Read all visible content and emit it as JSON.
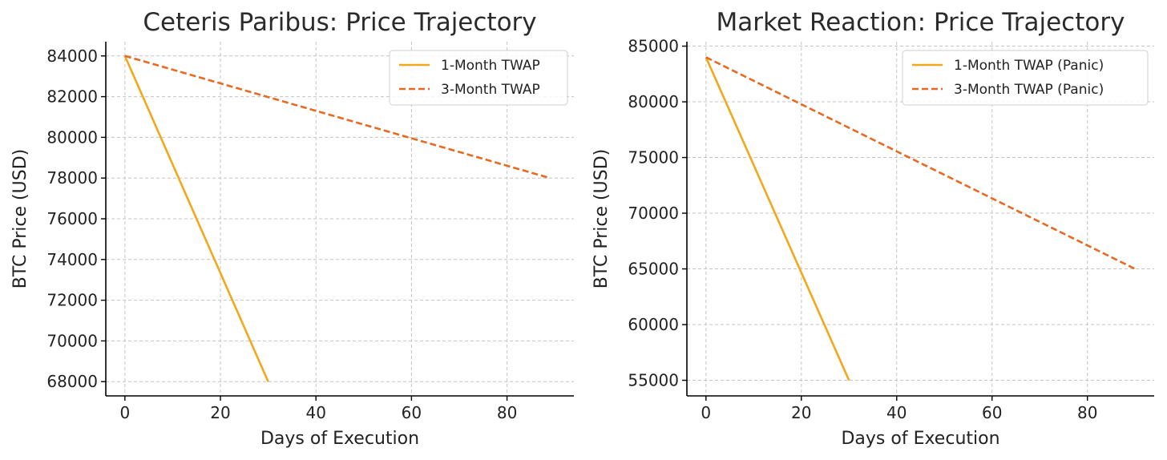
{
  "chart_data": [
    {
      "type": "line",
      "title": "Ceteris Paribus: Price Trajectory",
      "xlabel": "Days of Execution",
      "ylabel": "BTC Price (USD)",
      "xlim": [
        -4,
        94
      ],
      "ylim": [
        67300,
        84700
      ],
      "xticks": [
        0,
        20,
        40,
        60,
        80
      ],
      "yticks": [
        68000,
        70000,
        72000,
        74000,
        76000,
        78000,
        80000,
        82000,
        84000
      ],
      "grid": true,
      "legend_position": "top-right",
      "series": [
        {
          "name": "1-Month TWAP",
          "x": [
            0,
            30
          ],
          "values": [
            84000,
            68000
          ],
          "color": "#F2A81D",
          "style": "solid"
        },
        {
          "name": "3-Month TWAP",
          "x": [
            0,
            89
          ],
          "values": [
            84000,
            78000
          ],
          "color": "#E8691F",
          "style": "dashed"
        }
      ]
    },
    {
      "type": "line",
      "title": "Market Reaction: Price Trajectory",
      "xlabel": "Days of Execution",
      "ylabel": "BTC Price (USD)",
      "xlim": [
        -4,
        94
      ],
      "ylim": [
        53600,
        85400
      ],
      "xticks": [
        0,
        20,
        40,
        60,
        80
      ],
      "yticks": [
        55000,
        60000,
        65000,
        70000,
        75000,
        80000,
        85000
      ],
      "grid": true,
      "legend_position": "top-right",
      "series": [
        {
          "name": "1-Month TWAP (Panic)",
          "x": [
            0,
            30
          ],
          "values": [
            84000,
            55000
          ],
          "color": "#F2A81D",
          "style": "solid"
        },
        {
          "name": "3-Month TWAP (Panic)",
          "x": [
            0,
            90
          ],
          "values": [
            84000,
            65000
          ],
          "color": "#E8691F",
          "style": "dashed"
        }
      ]
    }
  ]
}
